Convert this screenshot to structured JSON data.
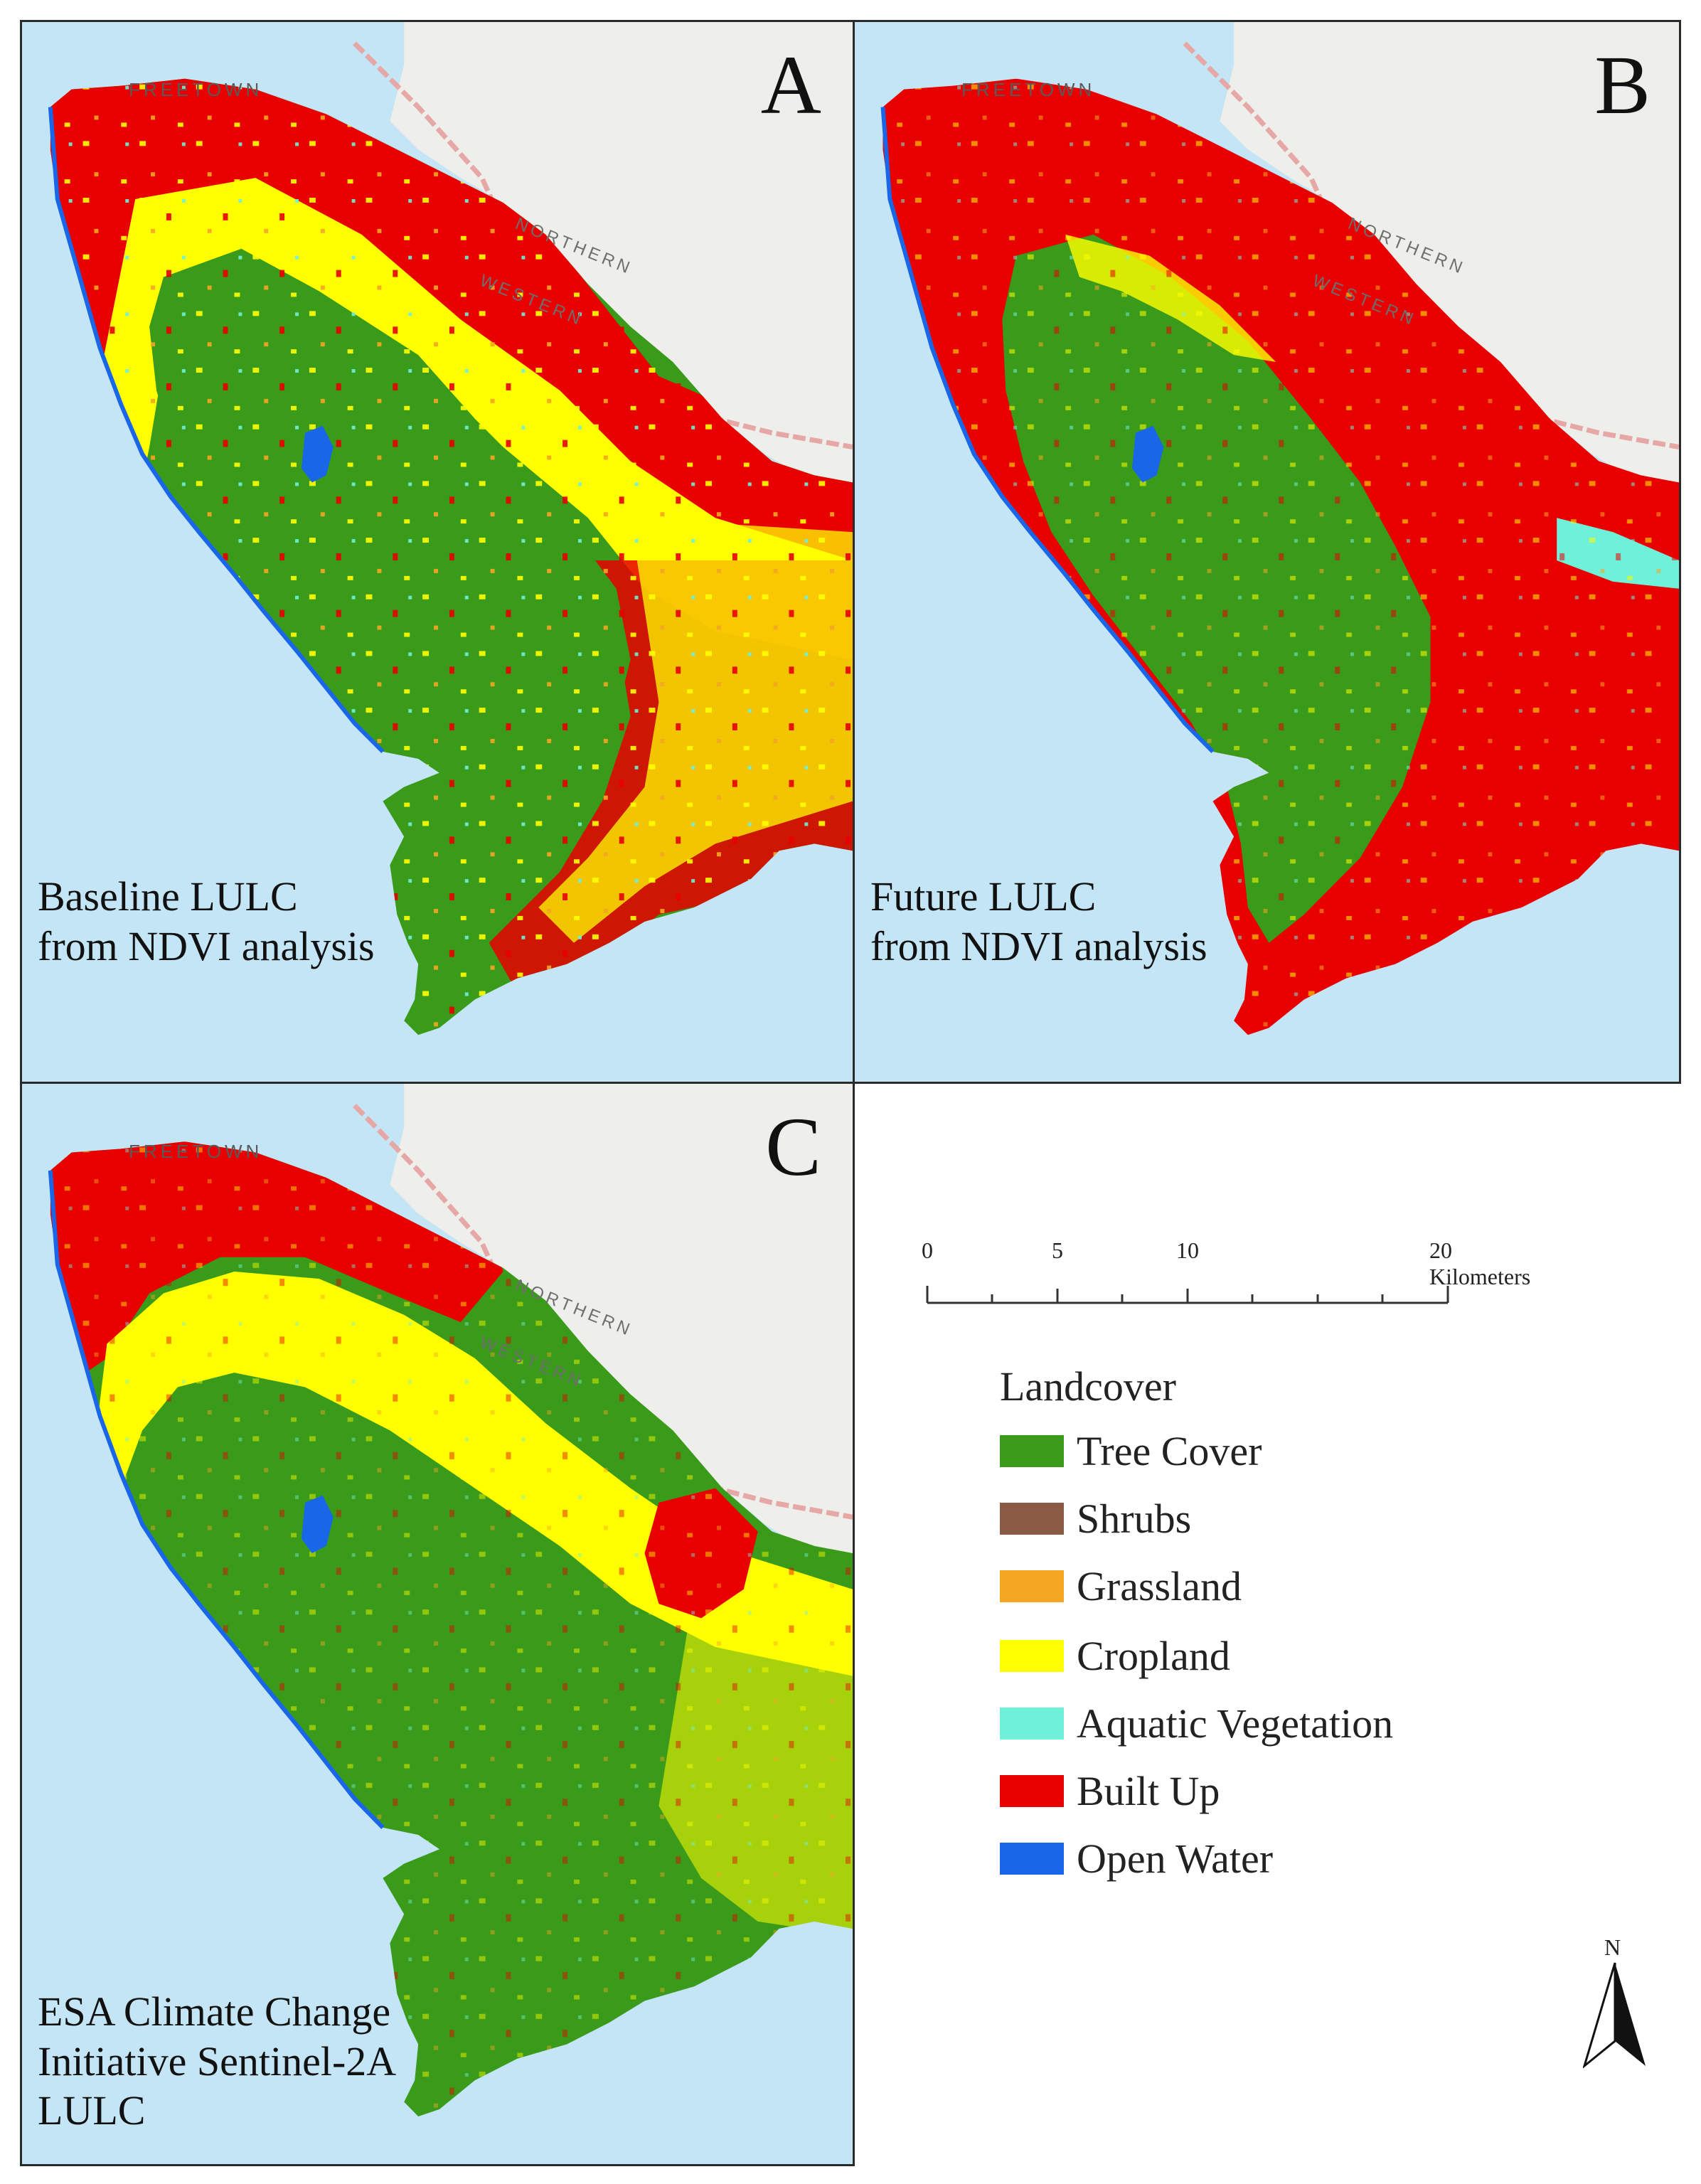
{
  "panels": [
    {
      "letter": "A",
      "caption": "Baseline LULC\nfrom NDVI analysis",
      "map": "baseline",
      "dominant": "tree-cover",
      "built_up_extent": "moderate"
    },
    {
      "letter": "B",
      "caption": "Future LULC\nfrom NDVI analysis",
      "map": "future",
      "dominant": "built-up",
      "built_up_extent": "high"
    },
    {
      "letter": "C",
      "caption": "ESA Climate Change\nInitiative Sentinel-2A\nLULC",
      "map": "esa",
      "dominant": "tree-cover",
      "built_up_extent": "low"
    }
  ],
  "places": {
    "city": "FREETOWN",
    "region1": "NORTHERN",
    "region2": "WESTERN"
  },
  "scale": {
    "ticks": [
      "0",
      "5",
      "10",
      "20 Kilometers"
    ]
  },
  "legend": {
    "title": "Landcover",
    "items": [
      {
        "label": "Tree Cover",
        "color": "#3a9a1a"
      },
      {
        "label": "Shrubs",
        "color": "#8a5a44"
      },
      {
        "label": "Grassland",
        "color": "#f5a623"
      },
      {
        "label": "Cropland",
        "color": "#ffff00"
      },
      {
        "label": "Aquatic Vegetation",
        "color": "#6ff0d8"
      },
      {
        "label": "Built Up",
        "color": "#e80000"
      },
      {
        "label": "Open Water",
        "color": "#1a66e8"
      }
    ]
  },
  "north": {
    "label": "N"
  },
  "colors": {
    "sea": "#c4e5f5",
    "land_background": "#eeeeea",
    "boundary": "#e6a7a7"
  }
}
